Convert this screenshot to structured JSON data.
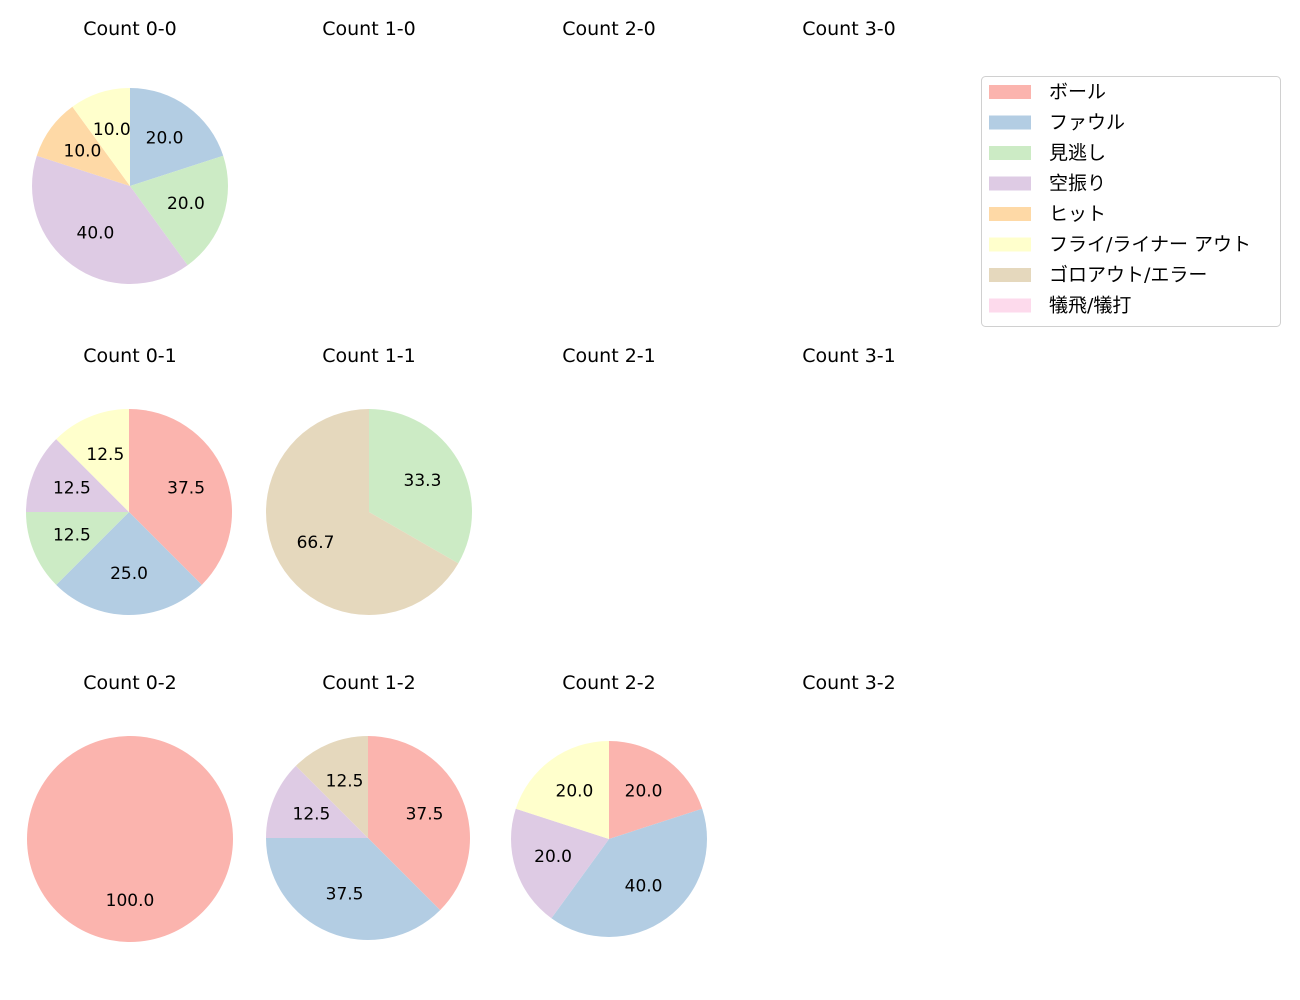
{
  "chart_data": {
    "type": "pie",
    "legend": {
      "placement": "top-right",
      "entries": [
        "ボール",
        "ファウル",
        "見逃し",
        "空振り",
        "ヒット",
        "フライ/ライナー アウト",
        "ゴロアウト/エラー",
        "犠飛/犠打"
      ]
    },
    "colors": [
      "#fbb4ae",
      "#b3cde3",
      "#ccebc5",
      "#decbe4",
      "#fed9a6",
      "#ffffcc",
      "#e5d8bd",
      "#fddaec"
    ],
    "start_angle_deg": 90,
    "direction": "clockwise",
    "value_format": "percent, 1 decimal",
    "subplots": [
      {
        "title": "Count 0-0",
        "values": [
          0,
          20,
          20,
          40,
          10,
          10,
          0,
          0
        ]
      },
      {
        "title": "Count 1-0",
        "values": []
      },
      {
        "title": "Count 2-0",
        "values": []
      },
      {
        "title": "Count 3-0",
        "values": []
      },
      {
        "title": "Count 0-1",
        "values": [
          37.5,
          25,
          12.5,
          12.5,
          0,
          12.5,
          0,
          0
        ]
      },
      {
        "title": "Count 1-1",
        "values": [
          0,
          0,
          33.3,
          0,
          0,
          0,
          66.7,
          0
        ]
      },
      {
        "title": "Count 2-1",
        "values": []
      },
      {
        "title": "Count 3-1",
        "values": []
      },
      {
        "title": "Count 0-2",
        "values": [
          100,
          0,
          0,
          0,
          0,
          0,
          0,
          0
        ]
      },
      {
        "title": "Count 1-2",
        "values": [
          37.5,
          37.5,
          0,
          12.5,
          0,
          0,
          12.5,
          0
        ]
      },
      {
        "title": "Count 2-2",
        "values": [
          20,
          40,
          0,
          20,
          0,
          20,
          0,
          0
        ]
      },
      {
        "title": "Count 3-2",
        "values": []
      }
    ]
  }
}
